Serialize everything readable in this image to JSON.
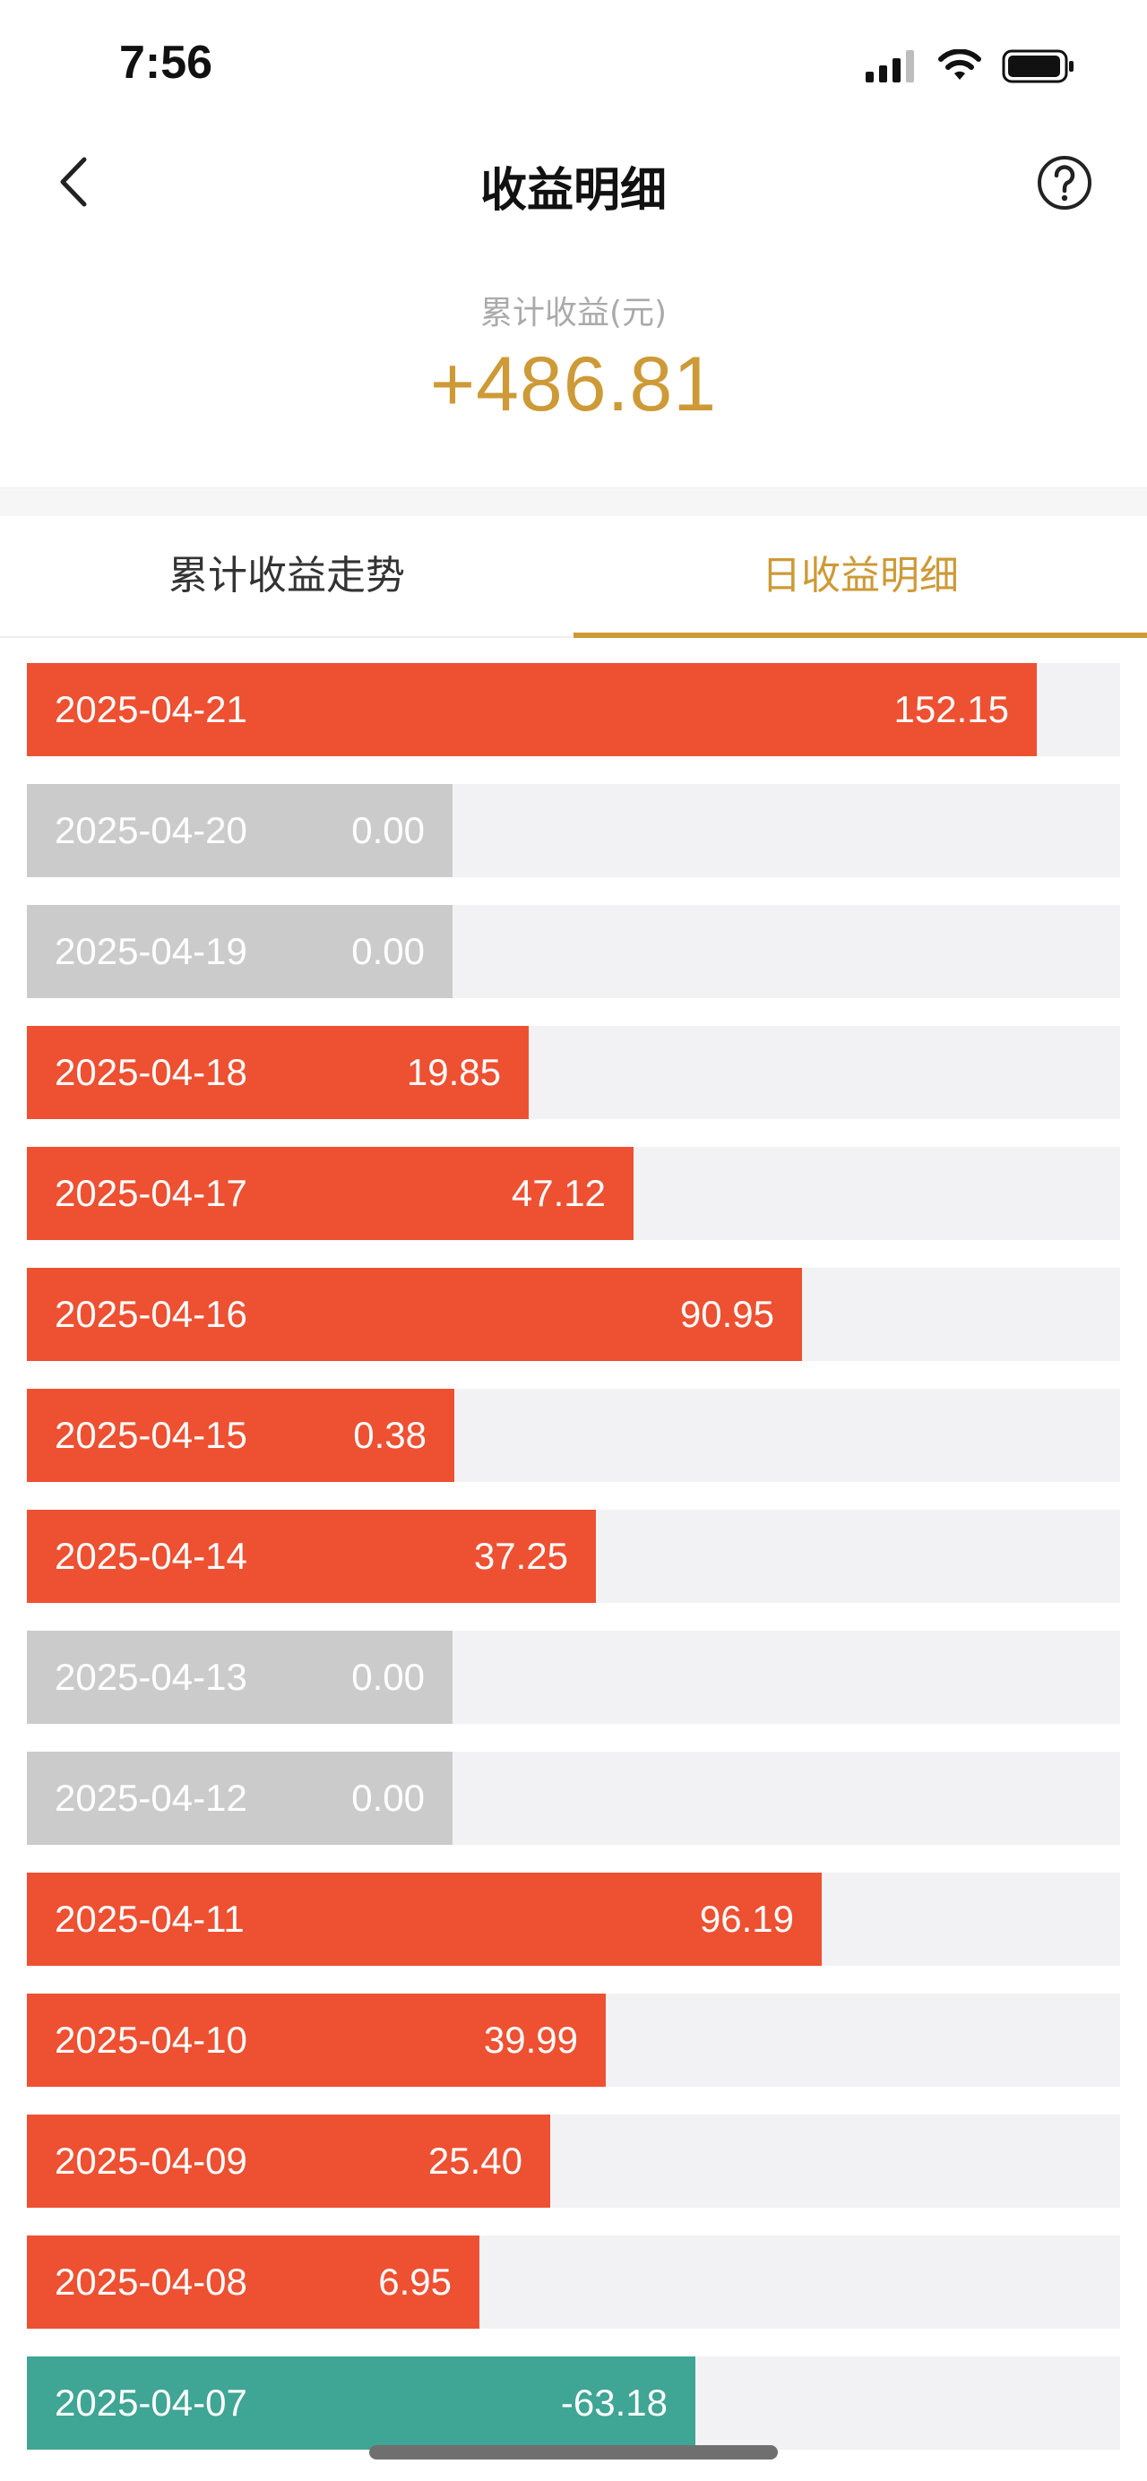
{
  "status_bar": {
    "time": "7:56",
    "icons": [
      "cellular-signal-icon",
      "wifi-icon",
      "battery-icon"
    ]
  },
  "nav": {
    "title": "收益明细",
    "back_icon": "chevron-left-icon",
    "help_icon": "question-circle-icon"
  },
  "summary": {
    "label": "累计收益(元)",
    "value": "+486.81"
  },
  "tabs": [
    {
      "label": "累计收益走势",
      "active": false
    },
    {
      "label": "日收益明细",
      "active": true
    }
  ],
  "colors": {
    "accent_gold": "#cd9a37",
    "positive": "#ee5032",
    "zero": "#cbcbcb",
    "negative": "#3fa594",
    "track": "#f2f2f5"
  },
  "daily_earnings": [
    {
      "date": "2025-04-21",
      "amount": "152.15"
    },
    {
      "date": "2025-04-20",
      "amount": "0.00"
    },
    {
      "date": "2025-04-19",
      "amount": "0.00"
    },
    {
      "date": "2025-04-18",
      "amount": "19.85"
    },
    {
      "date": "2025-04-17",
      "amount": "47.12"
    },
    {
      "date": "2025-04-16",
      "amount": "90.95"
    },
    {
      "date": "2025-04-15",
      "amount": "0.38"
    },
    {
      "date": "2025-04-14",
      "amount": "37.25"
    },
    {
      "date": "2025-04-13",
      "amount": "0.00"
    },
    {
      "date": "2025-04-12",
      "amount": "0.00"
    },
    {
      "date": "2025-04-11",
      "amount": "96.19"
    },
    {
      "date": "2025-04-10",
      "amount": "39.99"
    },
    {
      "date": "2025-04-09",
      "amount": "25.40"
    },
    {
      "date": "2025-04-08",
      "amount": "6.95"
    },
    {
      "date": "2025-04-07",
      "amount": "-63.18"
    }
  ]
}
